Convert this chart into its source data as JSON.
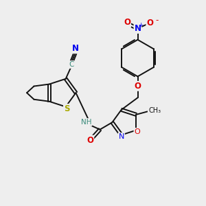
{
  "bg_color": "#eeeeee",
  "bond_color": "#111111",
  "bond_width": 1.4,
  "dbo": 0.07,
  "atom_colors": {
    "C": "#3a8a7a",
    "N": "#0000ee",
    "O": "#dd0000",
    "S": "#aaaa00",
    "H": "#555555"
  },
  "font_size": 7.5
}
